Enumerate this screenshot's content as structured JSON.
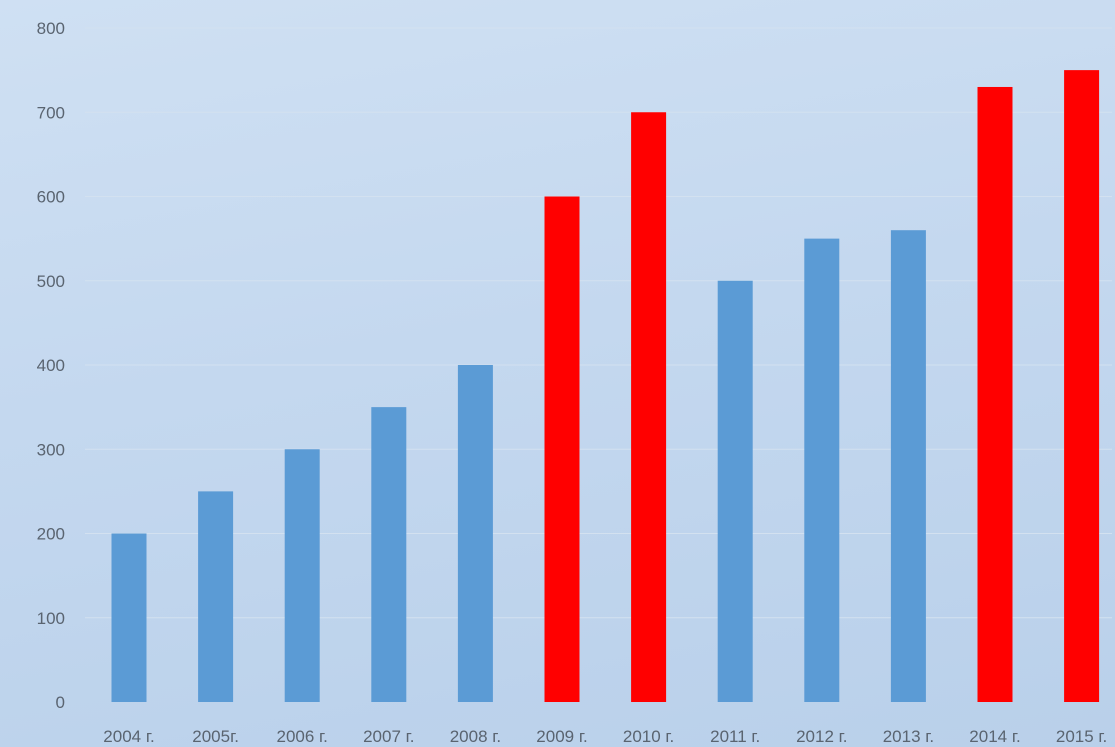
{
  "chart_data": {
    "type": "bar",
    "categories": [
      "2004 г.",
      "2005г.",
      "2006 г.",
      "2007 г.",
      "2008 г.",
      "2009 г.",
      "2010 г.",
      "2011 г.",
      "2012 г.",
      "2013 г.",
      "2014 г.",
      "2015 г."
    ],
    "values": [
      200,
      250,
      300,
      350,
      400,
      600,
      700,
      500,
      550,
      560,
      730,
      750
    ],
    "bar_colors": [
      "#5b9bd5",
      "#5b9bd5",
      "#5b9bd5",
      "#5b9bd5",
      "#5b9bd5",
      "#ff0000",
      "#ff0000",
      "#5b9bd5",
      "#5b9bd5",
      "#5b9bd5",
      "#ff0000",
      "#ff0000"
    ],
    "ylim": [
      0,
      800
    ],
    "yticks": [
      0,
      100,
      200,
      300,
      400,
      500,
      600,
      700,
      800
    ],
    "ytick_labels": [
      "0",
      "100",
      "200",
      "300",
      "400",
      "500",
      "600",
      "700",
      "800"
    ],
    "grid": true,
    "legend": "none",
    "title": "",
    "xlabel": "",
    "ylabel": ""
  }
}
